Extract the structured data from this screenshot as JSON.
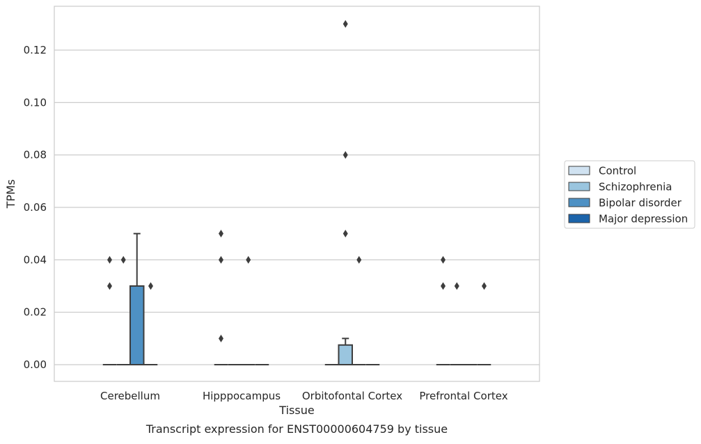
{
  "chart_data": {
    "type": "box",
    "xlabel": "Tissue",
    "ylabel": "TPMs",
    "caption": "Transcript expression for ENST00000604759 by tissue",
    "ylim": [
      -0.0065,
      0.1365
    ],
    "y_ticks": [
      0.0,
      0.02,
      0.04,
      0.06,
      0.08,
      0.1,
      0.12
    ],
    "y_tick_labels": [
      "0.00",
      "0.02",
      "0.04",
      "0.06",
      "0.08",
      "0.10",
      "0.12"
    ],
    "grid": true,
    "legend_position": "right",
    "categories": [
      "Cerebellum",
      "Hipppocampus",
      "Orbitofontal Cortex",
      "Prefrontal Cortex"
    ],
    "series": [
      {
        "name": "Control",
        "color": "#d0e2f1",
        "boxes": [
          {
            "q1": 0,
            "median": 0,
            "q3": 0,
            "whisker_low": 0,
            "whisker_high": 0,
            "outliers": [
              0.03,
              0.04
            ]
          },
          {
            "q1": 0,
            "median": 0,
            "q3": 0,
            "whisker_low": 0,
            "whisker_high": 0,
            "outliers": [
              0.01,
              0.04,
              0.05
            ]
          },
          {
            "q1": 0,
            "median": 0,
            "q3": 0,
            "whisker_low": 0,
            "whisker_high": 0,
            "outliers": []
          },
          {
            "q1": 0,
            "median": 0,
            "q3": 0,
            "whisker_low": 0,
            "whisker_high": 0,
            "outliers": [
              0.03,
              0.04
            ]
          }
        ]
      },
      {
        "name": "Schizophrenia",
        "color": "#9ac5df",
        "boxes": [
          {
            "q1": 0,
            "median": 0,
            "q3": 0,
            "whisker_low": 0,
            "whisker_high": 0,
            "outliers": [
              0.04
            ]
          },
          {
            "q1": 0,
            "median": 0,
            "q3": 0,
            "whisker_low": 0,
            "whisker_high": 0,
            "outliers": []
          },
          {
            "q1": 0,
            "median": 0,
            "q3": 0.0075,
            "whisker_low": 0,
            "whisker_high": 0.01,
            "outliers": [
              0.05,
              0.08,
              0.13
            ]
          },
          {
            "q1": 0,
            "median": 0,
            "q3": 0,
            "whisker_low": 0,
            "whisker_high": 0,
            "outliers": [
              0.03
            ]
          }
        ]
      },
      {
        "name": "Bipolar disorder",
        "color": "#4e91c4",
        "boxes": [
          {
            "q1": 0,
            "median": 0,
            "q3": 0.03,
            "whisker_low": 0,
            "whisker_high": 0.05,
            "outliers": []
          },
          {
            "q1": 0,
            "median": 0,
            "q3": 0,
            "whisker_low": 0,
            "whisker_high": 0,
            "outliers": [
              0.04
            ]
          },
          {
            "q1": 0,
            "median": 0,
            "q3": 0,
            "whisker_low": 0,
            "whisker_high": 0,
            "outliers": [
              0.04
            ]
          },
          {
            "q1": 0,
            "median": 0,
            "q3": 0,
            "whisker_low": 0,
            "whisker_high": 0,
            "outliers": []
          }
        ]
      },
      {
        "name": "Major depression",
        "color": "#1c64aa",
        "boxes": [
          {
            "q1": 0,
            "median": 0,
            "q3": 0,
            "whisker_low": 0,
            "whisker_high": 0,
            "outliers": [
              0.03
            ]
          },
          {
            "q1": 0,
            "median": 0,
            "q3": 0,
            "whisker_low": 0,
            "whisker_high": 0,
            "outliers": []
          },
          {
            "q1": 0,
            "median": 0,
            "q3": 0,
            "whisker_low": 0,
            "whisker_high": 0,
            "outliers": []
          },
          {
            "q1": 0,
            "median": 0,
            "q3": 0,
            "whisker_low": 0,
            "whisker_high": 0,
            "outliers": [
              0.03
            ]
          }
        ]
      }
    ]
  }
}
